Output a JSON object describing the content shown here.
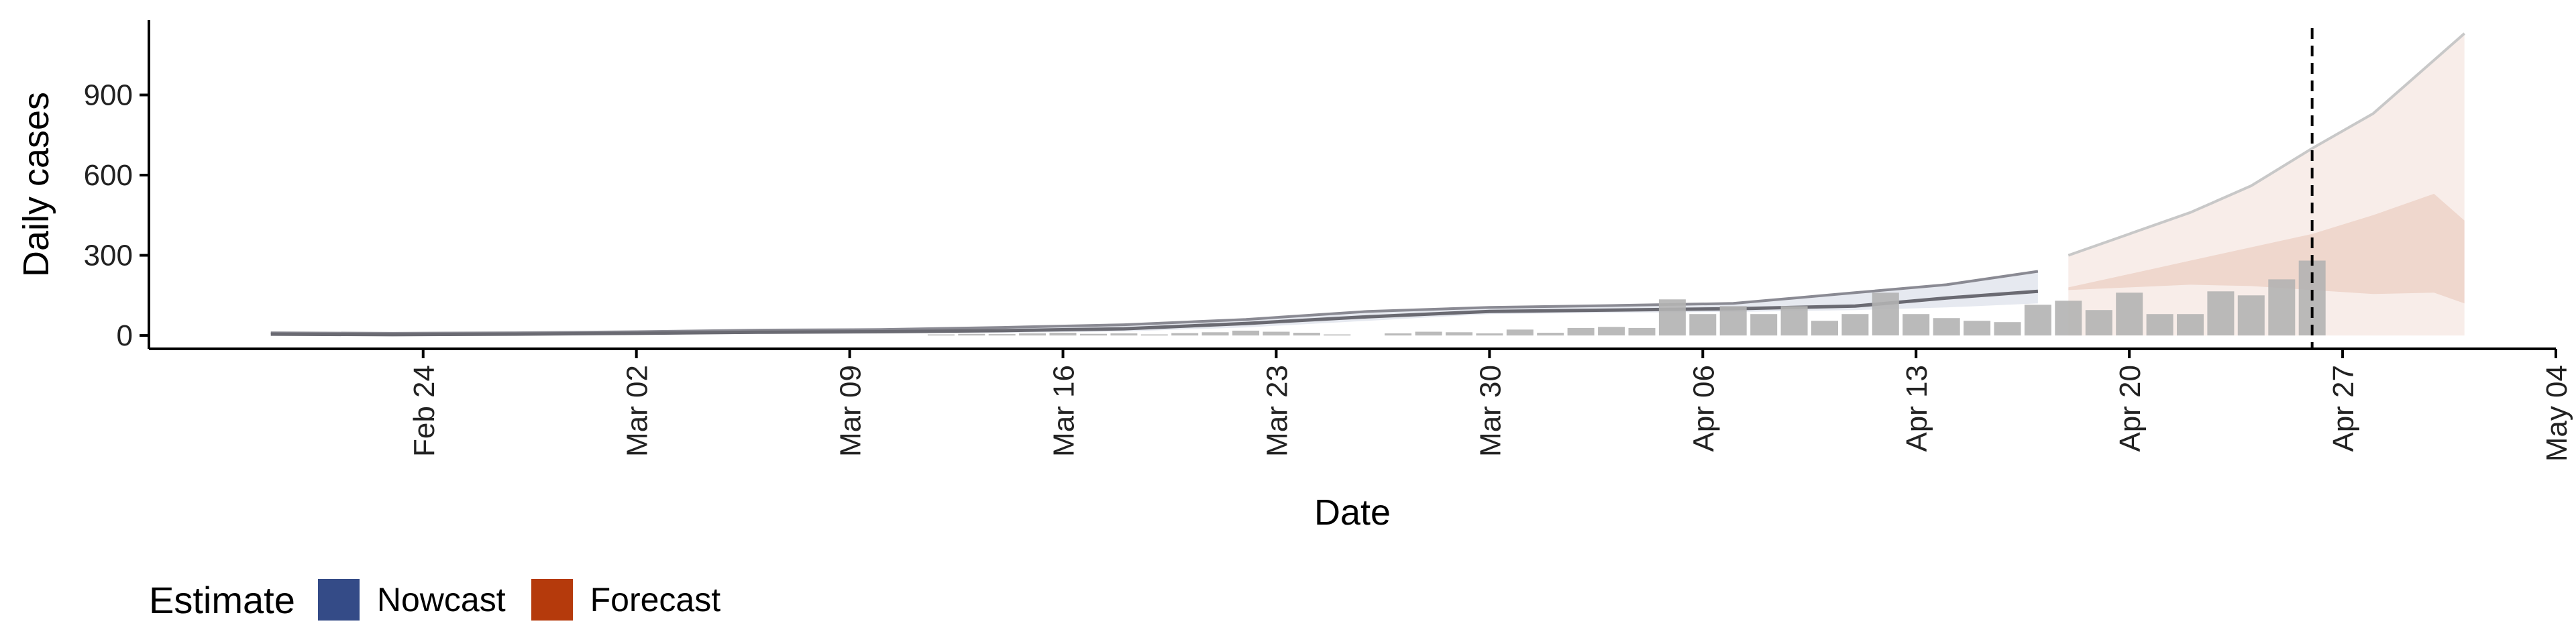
{
  "chart_data": {
    "type": "bar",
    "xlabel": "Date",
    "ylabel": "Daily cases",
    "x_ticks": [
      "Feb 24",
      "Mar 02",
      "Mar 09",
      "Mar 16",
      "Mar 23",
      "Mar 30",
      "Apr 06",
      "Apr 13",
      "Apr 20",
      "Apr 27",
      "May 04"
    ],
    "x_tick_dates": [
      "2020-02-24",
      "2020-03-02",
      "2020-03-09",
      "2020-03-16",
      "2020-03-23",
      "2020-03-30",
      "2020-04-06",
      "2020-04-13",
      "2020-04-20",
      "2020-04-27",
      "2020-05-04"
    ],
    "y_ticks": [
      0,
      300,
      600,
      900
    ],
    "ylim": [
      -50,
      1180
    ],
    "xlim": [
      "2020-02-15",
      "2020-05-04"
    ],
    "vline_date": "2020-04-26",
    "legend": {
      "title": "Estimate",
      "entries": [
        {
          "label": "Nowcast",
          "color": "#344b87"
        },
        {
          "label": "Forecast",
          "color": "#b53a0c"
        }
      ],
      "position": "bottom-left"
    },
    "colors": {
      "bars": "#b3b3b3",
      "nowcast": "#344b87",
      "forecast": "#b53a0c"
    },
    "observed": {
      "dates": [
        "2020-03-12",
        "2020-03-13",
        "2020-03-14",
        "2020-03-15",
        "2020-03-16",
        "2020-03-17",
        "2020-03-18",
        "2020-03-19",
        "2020-03-20",
        "2020-03-21",
        "2020-03-22",
        "2020-03-23",
        "2020-03-24",
        "2020-03-25",
        "2020-03-27",
        "2020-03-28",
        "2020-03-29",
        "2020-03-30",
        "2020-03-31",
        "2020-04-01",
        "2020-04-02",
        "2020-04-03",
        "2020-04-04",
        "2020-04-05",
        "2020-04-06",
        "2020-04-07",
        "2020-04-08",
        "2020-04-09",
        "2020-04-10",
        "2020-04-11",
        "2020-04-12",
        "2020-04-13",
        "2020-04-14",
        "2020-04-15",
        "2020-04-16",
        "2020-04-17",
        "2020-04-18",
        "2020-04-19",
        "2020-04-20",
        "2020-04-21",
        "2020-04-22",
        "2020-04-23",
        "2020-04-24",
        "2020-04-25",
        "2020-04-26"
      ],
      "values": [
        4,
        6,
        5,
        8,
        10,
        6,
        8,
        4,
        9,
        12,
        18,
        14,
        10,
        4,
        8,
        14,
        12,
        8,
        22,
        10,
        28,
        32,
        28,
        135,
        80,
        110,
        80,
        110,
        55,
        80,
        160,
        80,
        65,
        55,
        50,
        115,
        130,
        95,
        160,
        80,
        80,
        165,
        150,
        210,
        280
      ]
    },
    "series": [
      {
        "name": "Nowcast",
        "dates": [
          "2020-02-19",
          "2020-02-23",
          "2020-02-27",
          "2020-03-02",
          "2020-03-06",
          "2020-03-10",
          "2020-03-14",
          "2020-03-18",
          "2020-03-22",
          "2020-03-26",
          "2020-03-30",
          "2020-04-03",
          "2020-04-07",
          "2020-04-11",
          "2020-04-14",
          "2020-04-17"
        ],
        "median": [
          5,
          3,
          5,
          8,
          12,
          14,
          18,
          25,
          45,
          70,
          90,
          95,
          100,
          110,
          140,
          165
        ],
        "upper": [
          10,
          8,
          10,
          14,
          20,
          22,
          30,
          40,
          60,
          90,
          105,
          112,
          120,
          160,
          190,
          240
        ],
        "lower": [
          1,
          0,
          1,
          3,
          6,
          8,
          10,
          15,
          30,
          55,
          80,
          85,
          88,
          95,
          105,
          120
        ]
      },
      {
        "name": "Forecast",
        "dates": [
          "2020-04-18",
          "2020-04-20",
          "2020-04-22",
          "2020-04-24",
          "2020-04-26",
          "2020-04-28",
          "2020-04-30",
          "2020-05-01"
        ],
        "median": [
          180,
          210,
          230,
          280,
          330,
          380,
          430,
          410
        ],
        "upper": [
          300,
          380,
          460,
          560,
          700,
          830,
          1030,
          1130
        ],
        "upper50": [
          180,
          230,
          280,
          330,
          380,
          450,
          530,
          430
        ],
        "lower50": [
          170,
          180,
          190,
          185,
          170,
          155,
          160,
          120
        ],
        "lower": [
          0,
          0,
          0,
          0,
          0,
          0,
          0,
          0
        ]
      }
    ]
  }
}
